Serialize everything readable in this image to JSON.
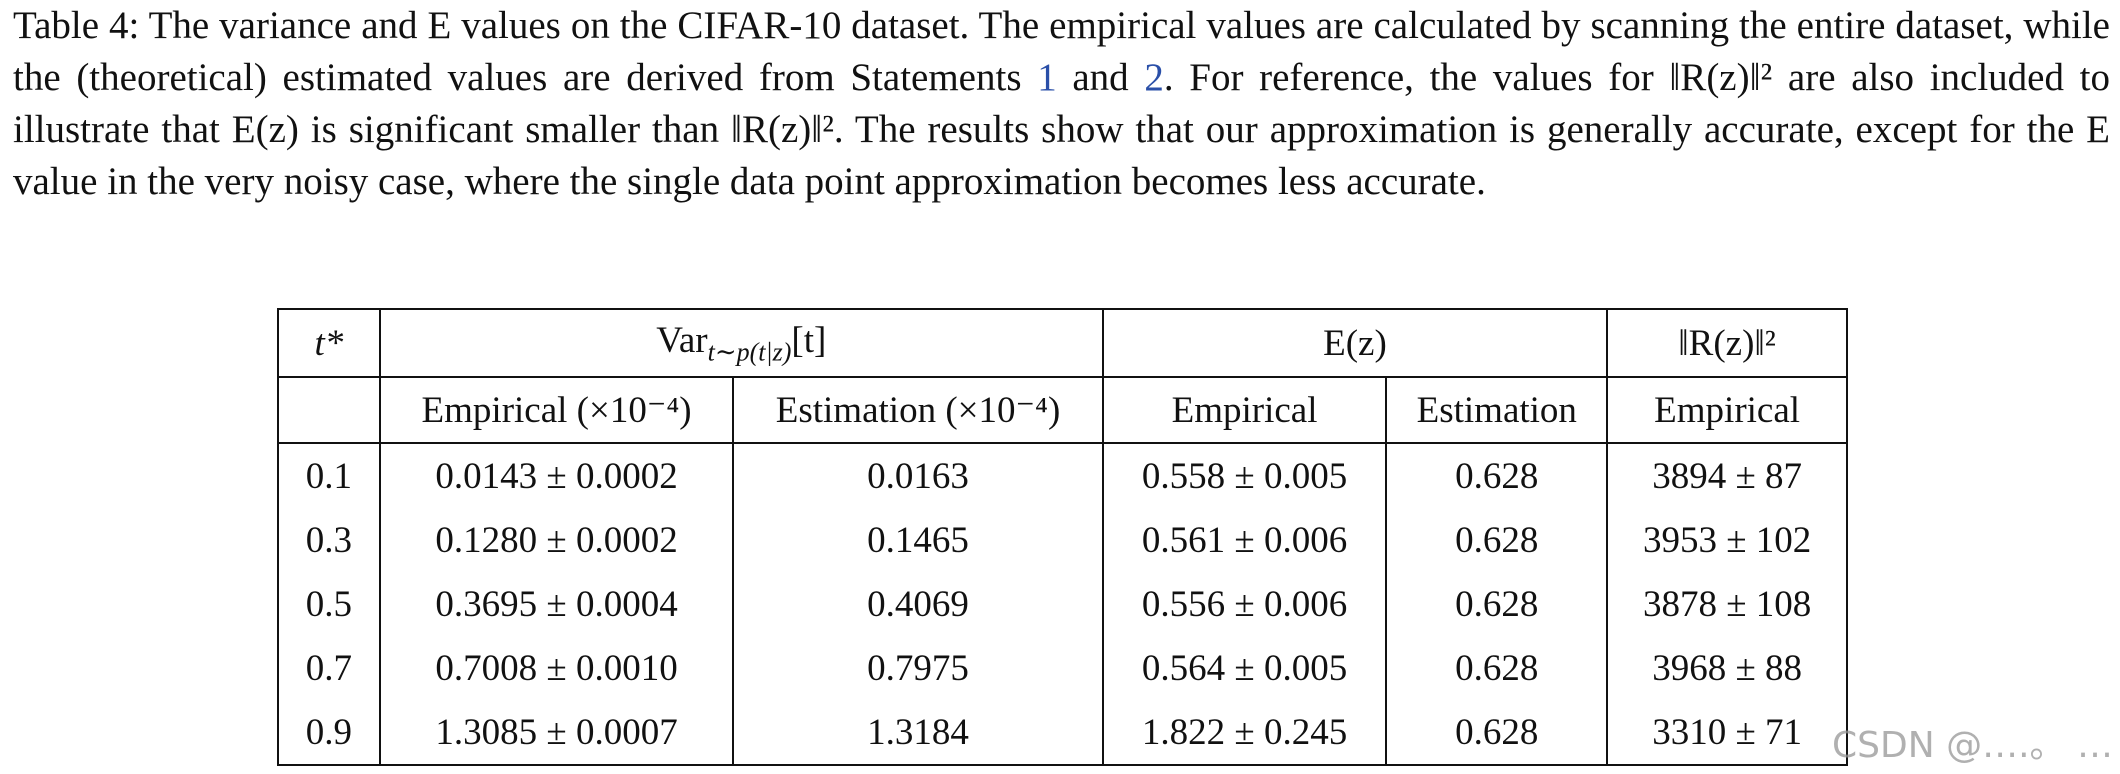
{
  "caption": {
    "segments": [
      "Table 4: The variance and E values on the CIFAR-10 dataset. The empirical values are calculated by scanning the entire dataset, while the (theoretical) estimated values are derived from Statements ",
      "1",
      " and ",
      "2",
      ". For reference, the values for ‖R(z)‖² are also included to illustrate that E(z) is significant smaller than ‖R(z)‖². The results show that our approximation is generally accurate, except for the E value in the very noisy case, where the single data point approximation becomes less accurate."
    ]
  },
  "table": {
    "header_top": {
      "t": "t*",
      "var_main": "Var",
      "var_sub": "t∼p(t|z)",
      "var_bracket": "[t]",
      "e": "E(z)",
      "r": "‖R(z)‖²"
    },
    "header_sub": [
      "Empirical (×10⁻⁴)",
      "Estimation (×10⁻⁴)",
      "Empirical",
      "Estimation",
      "Empirical"
    ],
    "rows": [
      [
        "0.1",
        "0.0143 ± 0.0002",
        "0.0163",
        "0.558 ± 0.005",
        "0.628",
        "3894 ± 87"
      ],
      [
        "0.3",
        "0.1280 ± 0.0002",
        "0.1465",
        "0.561 ± 0.006",
        "0.628",
        "3953 ± 102"
      ],
      [
        "0.5",
        "0.3695 ± 0.0004",
        "0.4069",
        "0.556 ± 0.006",
        "0.628",
        "3878 ± 108"
      ],
      [
        "0.7",
        "0.7008 ± 0.0010",
        "0.7975",
        "0.564 ± 0.005",
        "0.628",
        "3968 ± 88"
      ],
      [
        "0.9",
        "1.3085 ± 0.0007",
        "1.3184",
        "1.822 ± 0.245",
        "0.628",
        "3310 ± 71"
      ]
    ]
  },
  "watermark": "CSDN @….。 …"
}
